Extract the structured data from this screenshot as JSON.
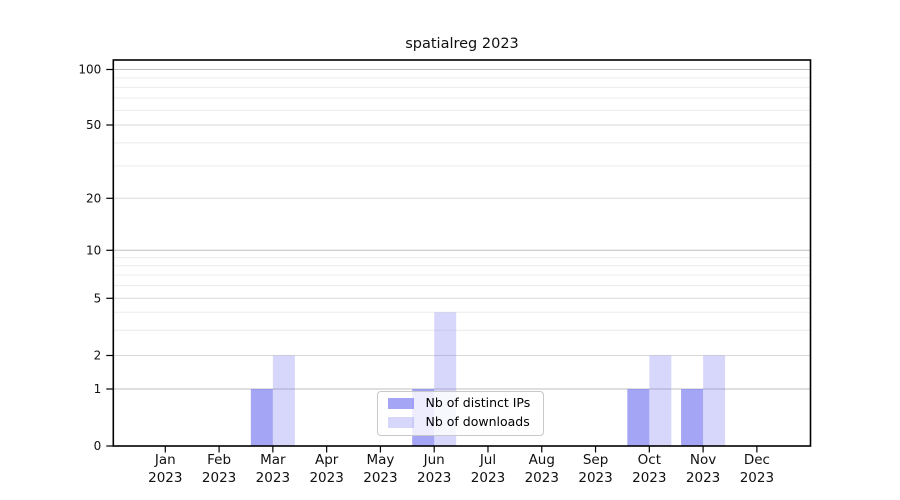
{
  "figure": {
    "title": "spatialreg 2023"
  },
  "chart_data": {
    "type": "bar",
    "title": "spatialreg 2023",
    "xlabel": "",
    "ylabel": "",
    "x": {
      "categories": [
        "Jan",
        "Feb",
        "Mar",
        "Apr",
        "May",
        "Jun",
        "Jul",
        "Aug",
        "Sep",
        "Oct",
        "Nov",
        "Dec"
      ],
      "year": "2023"
    },
    "series": [
      {
        "name": "Nb of distinct IPs",
        "color": "rgba(123,123,242,0.68)",
        "values": [
          0,
          0,
          1,
          0,
          0,
          1,
          0,
          0,
          0,
          1,
          1,
          0
        ]
      },
      {
        "name": "Nb of downloads",
        "color": "rgba(123,123,242,0.30)",
        "values": [
          0,
          0,
          2,
          0,
          0,
          4,
          0,
          0,
          0,
          2,
          2,
          0
        ]
      }
    ],
    "y_axis": {
      "scale": "log (0 pinned at baseline)",
      "ticks": [
        0,
        1,
        2,
        5,
        10,
        20,
        50,
        100
      ],
      "minor_gridlines": [
        3,
        4,
        6,
        7,
        8,
        9,
        30,
        40,
        60,
        70,
        80,
        90
      ],
      "range": [
        0,
        100
      ]
    },
    "grid": true,
    "legend": {
      "position": "bottom-center",
      "entries": [
        "Nb of distinct IPs",
        "Nb of downloads"
      ]
    }
  }
}
